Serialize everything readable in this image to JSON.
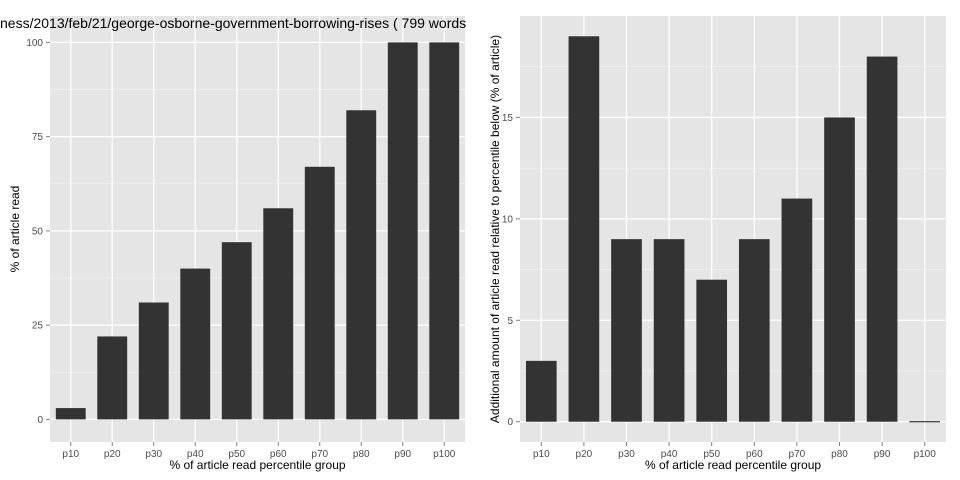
{
  "chart_data": [
    {
      "type": "bar",
      "title": "ness/2013/feb/21/george-osborne-government-borrowing-rises ( 799 words",
      "xlabel": "% of article read percentile group",
      "ylabel": "% of article read",
      "categories": [
        "p10",
        "p20",
        "p30",
        "p40",
        "p50",
        "p60",
        "p70",
        "p80",
        "p90",
        "p100"
      ],
      "values": [
        3,
        22,
        31,
        40,
        47,
        56,
        67,
        82,
        100,
        100
      ],
      "ylim": [
        -6,
        107
      ],
      "yticks": [
        0,
        25,
        50,
        75,
        100
      ],
      "ytick_labels": [
        "0",
        "25",
        "50",
        "75",
        "100"
      ],
      "grid": true,
      "bar_color": "#333333",
      "panel_color": "#e5e5e5",
      "grid_color": "#ffffff"
    },
    {
      "type": "bar",
      "title": "",
      "xlabel": "% of article read percentile group",
      "ylabel": "Additional amount of article read relative to percentile below (% of article)",
      "categories": [
        "p10",
        "p20",
        "p30",
        "p40",
        "p50",
        "p60",
        "p70",
        "p80",
        "p90",
        "p100"
      ],
      "values": [
        3,
        19,
        9,
        9,
        7,
        9,
        11,
        15,
        18,
        0
      ],
      "ylim": [
        -1,
        20
      ],
      "yticks": [
        0,
        5,
        10,
        15
      ],
      "ytick_labels": [
        "0",
        "5",
        "10",
        "15"
      ],
      "grid": true,
      "bar_color": "#333333",
      "panel_color": "#e5e5e5",
      "grid_color": "#ffffff"
    }
  ]
}
